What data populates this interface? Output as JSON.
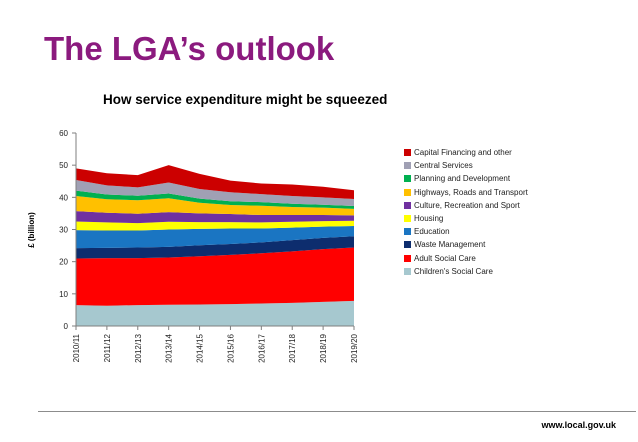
{
  "slide": {
    "title": "The LGA’s outlook",
    "footer_url": "www.local.gov.uk"
  },
  "colors": {
    "title": "#8b1a7e",
    "chart_background": "#ffffff"
  },
  "chart_data": {
    "type": "area",
    "stacked": true,
    "title": "How service expenditure might be squeezed",
    "xlabel": "",
    "ylabel": "£ (billion)",
    "ylim": [
      0,
      60
    ],
    "yticks": [
      0,
      10,
      20,
      30,
      40,
      50,
      60
    ],
    "grid": false,
    "legend_position": "right",
    "categories": [
      "2010/11",
      "2011/12",
      "2012/13",
      "2013/14",
      "2014/15",
      "2015/16",
      "2016/17",
      "2017/18",
      "2018/19",
      "2019/20"
    ],
    "series": [
      {
        "name": "Children's Social Care",
        "color": "#a6c8cf",
        "values": [
          6.5,
          6.3,
          6.5,
          6.6,
          6.7,
          6.8,
          7.0,
          7.2,
          7.5,
          7.8
        ]
      },
      {
        "name": "Adult Social Care",
        "color": "#ff0000",
        "values": [
          14.5,
          14.8,
          14.6,
          14.7,
          15.0,
          15.3,
          15.6,
          16.0,
          16.4,
          16.6
        ]
      },
      {
        "name": "Waste Management",
        "color": "#0d2d6e",
        "values": [
          3.2,
          3.2,
          3.3,
          3.3,
          3.4,
          3.4,
          3.4,
          3.5,
          3.5,
          3.5
        ]
      },
      {
        "name": "Education",
        "color": "#1a75c2",
        "values": [
          5.6,
          5.4,
          5.3,
          5.4,
          5.1,
          4.8,
          4.3,
          3.9,
          3.5,
          3.2
        ]
      },
      {
        "name": "Housing",
        "color": "#ffff00",
        "values": [
          2.7,
          2.5,
          2.3,
          2.4,
          2.1,
          2.0,
          1.9,
          1.8,
          1.7,
          1.6
        ]
      },
      {
        "name": "Culture, Recreation and Sport",
        "color": "#7030a0",
        "values": [
          3.2,
          3.0,
          2.9,
          3.0,
          2.7,
          2.5,
          2.3,
          2.1,
          1.9,
          1.7
        ]
      },
      {
        "name": "Highways, Roads and Transport",
        "color": "#ffc000",
        "values": [
          4.7,
          4.2,
          4.2,
          4.3,
          3.3,
          2.8,
          2.9,
          2.5,
          2.3,
          2.0
        ]
      },
      {
        "name": "Planning and Development",
        "color": "#00b050",
        "values": [
          1.7,
          1.5,
          1.4,
          1.5,
          1.3,
          1.2,
          1.1,
          1.0,
          0.9,
          0.9
        ]
      },
      {
        "name": "Central Services",
        "color": "#a0a0b4",
        "values": [
          3.3,
          2.8,
          2.6,
          3.4,
          3.0,
          2.8,
          2.5,
          2.4,
          2.3,
          2.2
        ]
      },
      {
        "name": "Capital Financing and other",
        "color": "#cc0000",
        "values": [
          3.6,
          3.8,
          3.8,
          5.4,
          4.7,
          3.6,
          3.3,
          3.6,
          3.3,
          2.7
        ]
      }
    ]
  }
}
